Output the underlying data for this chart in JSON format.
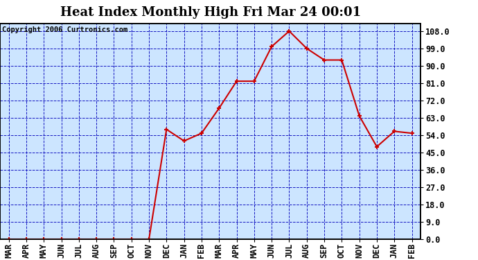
{
  "title": "Heat Index Monthly High Fri Mar 24 00:01",
  "copyright": "Copyright 2006 Curtronics.com",
  "categories": [
    "MAR",
    "APR",
    "MAY",
    "JUN",
    "JUL",
    "AUG",
    "SEP",
    "OCT",
    "NOV",
    "DEC",
    "JAN",
    "FEB",
    "MAR",
    "APR",
    "MAY",
    "JUN",
    "JUL",
    "AUG",
    "SEP",
    "OCT",
    "NOV",
    "DEC",
    "JAN",
    "FEB"
  ],
  "values": [
    0.0,
    0.0,
    0.0,
    0.0,
    0.0,
    0.0,
    0.0,
    0.0,
    0.0,
    57.0,
    51.0,
    55.0,
    68.0,
    82.0,
    82.0,
    100.0,
    108.0,
    99.0,
    93.0,
    93.0,
    64.0,
    48.0,
    56.0,
    55.0
  ],
  "ylim": [
    0.0,
    112.0
  ],
  "yticks": [
    0.0,
    9.0,
    18.0,
    27.0,
    36.0,
    45.0,
    54.0,
    63.0,
    72.0,
    81.0,
    90.0,
    99.0,
    108.0
  ],
  "ytick_labels": [
    "0.0",
    "9.0",
    "18.0",
    "27.0",
    "36.0",
    "45.0",
    "54.0",
    "63.0",
    "72.0",
    "81.0",
    "90.0",
    "99.0",
    "108.0"
  ],
  "line_color": "#cc0000",
  "marker_color": "#cc0000",
  "bg_color": "#cce5ff",
  "grid_color": "#0000bb",
  "title_fontsize": 13,
  "copyright_fontsize": 7.5,
  "tick_fontsize": 8.5,
  "fig_bg": "#ffffff"
}
